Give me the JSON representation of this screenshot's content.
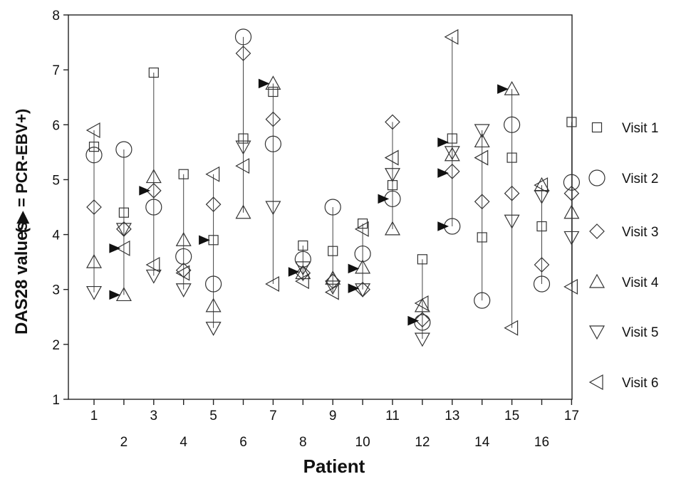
{
  "chart_data": {
    "type": "scatter",
    "title": "",
    "xlabel": "Patient",
    "ylabel": "DAS28 values",
    "ylabel_note": "( ▶ = PCR-EBV+)",
    "xlim": [
      0.5,
      17.5
    ],
    "ylim": [
      1,
      8
    ],
    "x_ticks": [
      1,
      2,
      3,
      4,
      5,
      6,
      7,
      8,
      9,
      10,
      11,
      12,
      13,
      14,
      15,
      16,
      17
    ],
    "y_ticks": [
      1,
      2,
      3,
      4,
      5,
      6,
      7,
      8
    ],
    "grid": false,
    "legend_position": "right",
    "series": [
      {
        "name": "Visit 1",
        "marker": "square",
        "x": [
          1,
          2,
          3,
          4,
          5,
          6,
          7,
          8,
          9,
          10,
          11,
          12,
          13,
          14,
          15,
          16,
          17
        ],
        "y": [
          5.6,
          4.4,
          6.95,
          5.1,
          3.9,
          5.75,
          6.6,
          3.8,
          3.7,
          4.2,
          4.9,
          3.55,
          5.75,
          3.95,
          5.4,
          4.15,
          6.05
        ]
      },
      {
        "name": "Visit 2",
        "marker": "circle",
        "x": [
          1,
          2,
          3,
          4,
          5,
          6,
          7,
          8,
          9,
          10,
          11,
          12,
          13,
          14,
          15,
          16,
          17
        ],
        "y": [
          5.45,
          5.55,
          4.5,
          3.6,
          3.1,
          7.6,
          5.65,
          3.55,
          4.5,
          3.65,
          4.65,
          2.4,
          4.15,
          2.8,
          6.0,
          3.1,
          4.95
        ]
      },
      {
        "name": "Visit 3",
        "marker": "diamond",
        "x": [
          1,
          2,
          3,
          4,
          5,
          6,
          7,
          8,
          9,
          10,
          11,
          12,
          13,
          14,
          15,
          16,
          17
        ],
        "y": [
          4.5,
          4.1,
          4.8,
          3.35,
          4.55,
          7.3,
          6.1,
          3.3,
          3.15,
          3.0,
          6.05,
          2.45,
          5.15,
          4.6,
          4.75,
          3.45,
          4.75
        ]
      },
      {
        "name": "Visit 4",
        "marker": "triangle-up",
        "x": [
          1,
          2,
          3,
          4,
          5,
          6,
          7,
          8,
          9,
          10,
          11,
          12,
          13,
          14,
          15,
          16,
          17
        ],
        "y": [
          3.5,
          2.9,
          5.05,
          3.9,
          2.7,
          4.4,
          6.75,
          3.3,
          3.2,
          3.4,
          4.1,
          2.7,
          5.45,
          5.7,
          6.65,
          4.9,
          4.4
        ]
      },
      {
        "name": "Visit 5",
        "marker": "triangle-down",
        "x": [
          1,
          2,
          3,
          4,
          5,
          6,
          7,
          8,
          9,
          10,
          11,
          12,
          13,
          14,
          15,
          16,
          17
        ],
        "y": [
          2.95,
          4.1,
          3.25,
          3.0,
          2.3,
          5.6,
          4.5,
          3.4,
          3.05,
          3.0,
          5.1,
          2.1,
          5.5,
          5.9,
          4.25,
          4.7,
          3.95
        ]
      },
      {
        "name": "Visit 6",
        "marker": "triangle-left",
        "x": [
          1,
          2,
          3,
          4,
          5,
          6,
          7,
          8,
          9,
          10,
          11,
          12,
          13,
          14,
          15,
          16,
          17
        ],
        "y": [
          5.9,
          3.75,
          3.45,
          3.3,
          5.1,
          5.25,
          3.1,
          3.15,
          2.95,
          4.1,
          5.4,
          2.75,
          7.6,
          5.4,
          2.3,
          4.9,
          3.05
        ]
      }
    ],
    "pcr_ebv_positive": {
      "marker": "filled-triangle-right",
      "points": [
        {
          "x": 2,
          "y": 3.75
        },
        {
          "x": 2,
          "y": 2.9
        },
        {
          "x": 3,
          "y": 4.8
        },
        {
          "x": 5,
          "y": 3.9
        },
        {
          "x": 7,
          "y": 6.75
        },
        {
          "x": 8,
          "y": 3.32
        },
        {
          "x": 10,
          "y": 3.38
        },
        {
          "x": 10,
          "y": 3.02
        },
        {
          "x": 11,
          "y": 4.65
        },
        {
          "x": 12,
          "y": 2.43
        },
        {
          "x": 13,
          "y": 5.68
        },
        {
          "x": 13,
          "y": 5.12
        },
        {
          "x": 13,
          "y": 4.15
        },
        {
          "x": 15,
          "y": 6.65
        }
      ]
    }
  }
}
